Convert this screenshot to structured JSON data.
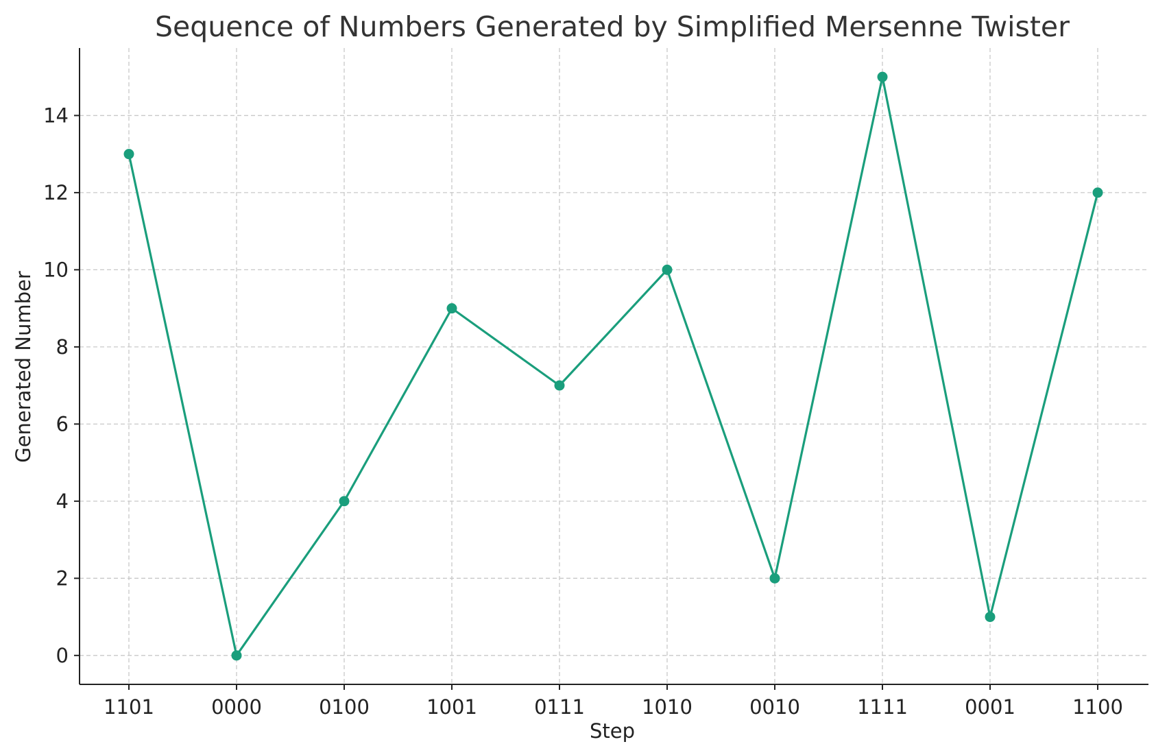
{
  "chart_data": {
    "type": "line",
    "title": "Sequence of Numbers Generated by Simplified Mersenne Twister",
    "xlabel": "Step",
    "ylabel": "Generated Number",
    "categories": [
      "1101",
      "0000",
      "0100",
      "1001",
      "0111",
      "1010",
      "0010",
      "1111",
      "0001",
      "1100"
    ],
    "series": [
      {
        "values": [
          13,
          0,
          4,
          9,
          7,
          10,
          2,
          15,
          1,
          12
        ],
        "color": "#1a9e7c",
        "marker": "circle"
      }
    ],
    "y_ticks": [
      0,
      2,
      4,
      6,
      8,
      10,
      12,
      14
    ],
    "y_tick_labels": [
      "0",
      "2",
      "4",
      "6",
      "8",
      "10",
      "12",
      "14"
    ],
    "ylim": [
      -0.75,
      15.75
    ],
    "grid": true,
    "grid_style": "dashed"
  }
}
